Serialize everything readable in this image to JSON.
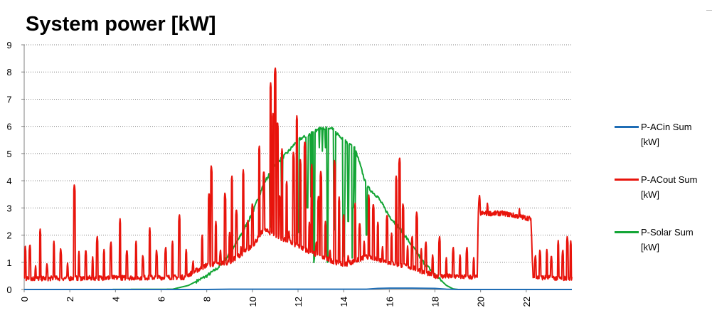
{
  "chart_data": {
    "type": "line",
    "title": "System power [kW]",
    "xlabel": "",
    "ylabel": "",
    "xlim": [
      0,
      24
    ],
    "ylim": [
      0,
      9
    ],
    "x_ticks": [
      0,
      2,
      4,
      6,
      8,
      10,
      12,
      14,
      16,
      18,
      20,
      22
    ],
    "y_ticks": [
      0,
      1,
      2,
      3,
      4,
      5,
      6,
      7,
      8,
      9
    ],
    "grid": "horizontal dotted",
    "legend_position": "right",
    "series": [
      {
        "name": "P-ACin Sum [kW]",
        "color": "#1f6db5",
        "style": "smooth",
        "points": [
          [
            0,
            0
          ],
          [
            8,
            0
          ],
          [
            9,
            0.01
          ],
          [
            15,
            0.01
          ],
          [
            15.5,
            0.04
          ],
          [
            16,
            0.05
          ],
          [
            17,
            0.05
          ],
          [
            18,
            0.04
          ],
          [
            18.5,
            0.01
          ],
          [
            19,
            0
          ],
          [
            24,
            0
          ]
        ]
      },
      {
        "name": "P-ACout Sum [kW]",
        "color": "#e8140c",
        "style": "spiky",
        "base": [
          [
            0,
            0.4
          ],
          [
            7,
            0.45
          ],
          [
            8,
            0.9
          ],
          [
            9,
            1.0
          ],
          [
            10,
            1.6
          ],
          [
            10.5,
            2.2
          ],
          [
            11,
            2.0
          ],
          [
            12,
            1.6
          ],
          [
            13,
            1.2
          ],
          [
            14,
            0.9
          ],
          [
            15,
            1.2
          ],
          [
            16,
            1.0
          ],
          [
            17,
            0.8
          ],
          [
            18,
            0.5
          ],
          [
            19.85,
            0.45
          ],
          [
            19.9,
            2.8
          ],
          [
            21,
            2.8
          ],
          [
            22.2,
            2.6
          ],
          [
            22.3,
            0.45
          ],
          [
            24,
            0.4
          ]
        ],
        "peaks": [
          [
            0.05,
            1.6
          ],
          [
            0.25,
            1.7
          ],
          [
            0.5,
            0.9
          ],
          [
            0.7,
            2.25
          ],
          [
            1.0,
            1.0
          ],
          [
            1.3,
            1.8
          ],
          [
            1.6,
            1.55
          ],
          [
            1.9,
            1.0
          ],
          [
            2.2,
            3.9
          ],
          [
            2.4,
            1.4
          ],
          [
            2.7,
            1.5
          ],
          [
            3.0,
            1.2
          ],
          [
            3.2,
            2.0
          ],
          [
            3.5,
            1.5
          ],
          [
            3.8,
            1.8
          ],
          [
            4.2,
            2.6
          ],
          [
            4.5,
            1.5
          ],
          [
            4.9,
            1.8
          ],
          [
            5.2,
            1.3
          ],
          [
            5.5,
            2.3
          ],
          [
            5.8,
            1.5
          ],
          [
            6.2,
            1.6
          ],
          [
            6.5,
            1.8
          ],
          [
            6.8,
            2.8
          ],
          [
            7.1,
            1.5
          ],
          [
            7.4,
            1.1
          ],
          [
            7.8,
            2.0
          ],
          [
            8.1,
            3.6
          ],
          [
            8.2,
            4.6
          ],
          [
            8.4,
            2.5
          ],
          [
            8.6,
            1.5
          ],
          [
            8.8,
            3.6
          ],
          [
            9.0,
            2.1
          ],
          [
            9.1,
            4.2
          ],
          [
            9.3,
            3.0
          ],
          [
            9.5,
            1.6
          ],
          [
            9.6,
            4.4
          ],
          [
            9.8,
            2.6
          ],
          [
            10.0,
            3.2
          ],
          [
            10.2,
            1.3
          ],
          [
            10.3,
            5.3
          ],
          [
            10.5,
            4.4
          ],
          [
            10.6,
            2.0
          ],
          [
            10.8,
            7.6
          ],
          [
            10.9,
            6.5
          ],
          [
            11.0,
            8.2
          ],
          [
            11.1,
            6.2
          ],
          [
            11.2,
            3.5
          ],
          [
            11.3,
            5.2
          ],
          [
            11.5,
            4.0
          ],
          [
            11.6,
            2.2
          ],
          [
            11.8,
            5.1
          ],
          [
            11.95,
            6.4
          ],
          [
            12.1,
            4.8
          ],
          [
            12.3,
            5.5
          ],
          [
            12.5,
            2.5
          ],
          [
            12.6,
            4.6
          ],
          [
            12.8,
            1.8
          ],
          [
            12.9,
            3.5
          ],
          [
            13.0,
            4.4
          ],
          [
            13.2,
            2.5
          ],
          [
            13.4,
            1.5
          ],
          [
            13.6,
            4.8
          ],
          [
            13.8,
            3.4
          ],
          [
            14.0,
            2.8
          ],
          [
            14.2,
            1.3
          ],
          [
            14.5,
            3.2
          ],
          [
            14.7,
            2.5
          ],
          [
            14.9,
            1.8
          ],
          [
            15.1,
            3.5
          ],
          [
            15.3,
            3.2
          ],
          [
            15.5,
            2.5
          ],
          [
            15.7,
            1.6
          ],
          [
            15.9,
            2.8
          ],
          [
            16.1,
            2.1
          ],
          [
            16.3,
            4.2
          ],
          [
            16.45,
            4.9
          ],
          [
            16.6,
            3.2
          ],
          [
            16.8,
            1.6
          ],
          [
            17.0,
            2.0
          ],
          [
            17.2,
            2.9
          ],
          [
            17.4,
            1.5
          ],
          [
            17.6,
            1.8
          ],
          [
            17.9,
            1.3
          ],
          [
            18.2,
            2.0
          ],
          [
            18.5,
            1.2
          ],
          [
            18.8,
            1.6
          ],
          [
            19.1,
            1.3
          ],
          [
            19.4,
            1.6
          ],
          [
            19.7,
            1.2
          ],
          [
            19.95,
            3.5
          ],
          [
            20.3,
            3.2
          ],
          [
            20.8,
            2.9
          ],
          [
            21.3,
            2.9
          ],
          [
            21.7,
            3.0
          ],
          [
            22.4,
            1.3
          ],
          [
            22.6,
            1.5
          ],
          [
            22.9,
            1.5
          ],
          [
            23.1,
            1.3
          ],
          [
            23.4,
            1.8
          ],
          [
            23.6,
            1.5
          ],
          [
            23.8,
            2.0
          ],
          [
            23.95,
            1.8
          ]
        ]
      },
      {
        "name": "P-Solar Sum [kW]",
        "color": "#13a535",
        "style": "bell",
        "envelope": [
          [
            0,
            0
          ],
          [
            3.5,
            0
          ],
          [
            6.5,
            0.01
          ],
          [
            7.2,
            0.15
          ],
          [
            8,
            0.5
          ],
          [
            8.5,
            0.8
          ],
          [
            9,
            1.3
          ],
          [
            9.5,
            2.0
          ],
          [
            10,
            2.8
          ],
          [
            10.5,
            3.9
          ],
          [
            11,
            4.6
          ],
          [
            11.5,
            5.0
          ],
          [
            12,
            5.5
          ],
          [
            12.5,
            5.7
          ],
          [
            13,
            5.95
          ],
          [
            13.5,
            5.9
          ],
          [
            14,
            5.5
          ],
          [
            14.5,
            5.2
          ],
          [
            15,
            3.8
          ],
          [
            15.5,
            3.4
          ],
          [
            16,
            2.7
          ],
          [
            16.5,
            2.2
          ],
          [
            17,
            1.6
          ],
          [
            17.5,
            1.0
          ],
          [
            18,
            0.55
          ],
          [
            18.5,
            0.15
          ],
          [
            18.8,
            0.02
          ],
          [
            19,
            0
          ],
          [
            24,
            0
          ]
        ],
        "dips": [
          [
            10.8,
            2.3
          ],
          [
            11.3,
            3.0
          ],
          [
            12.0,
            2.1
          ],
          [
            12.4,
            3.0
          ],
          [
            12.7,
            1.4
          ],
          [
            13.3,
            1.0
          ],
          [
            13.6,
            2.2
          ],
          [
            14.0,
            1.6
          ],
          [
            14.2,
            2.5
          ],
          [
            14.4,
            3.0
          ],
          [
            15.0,
            2.0
          ]
        ]
      }
    ]
  }
}
